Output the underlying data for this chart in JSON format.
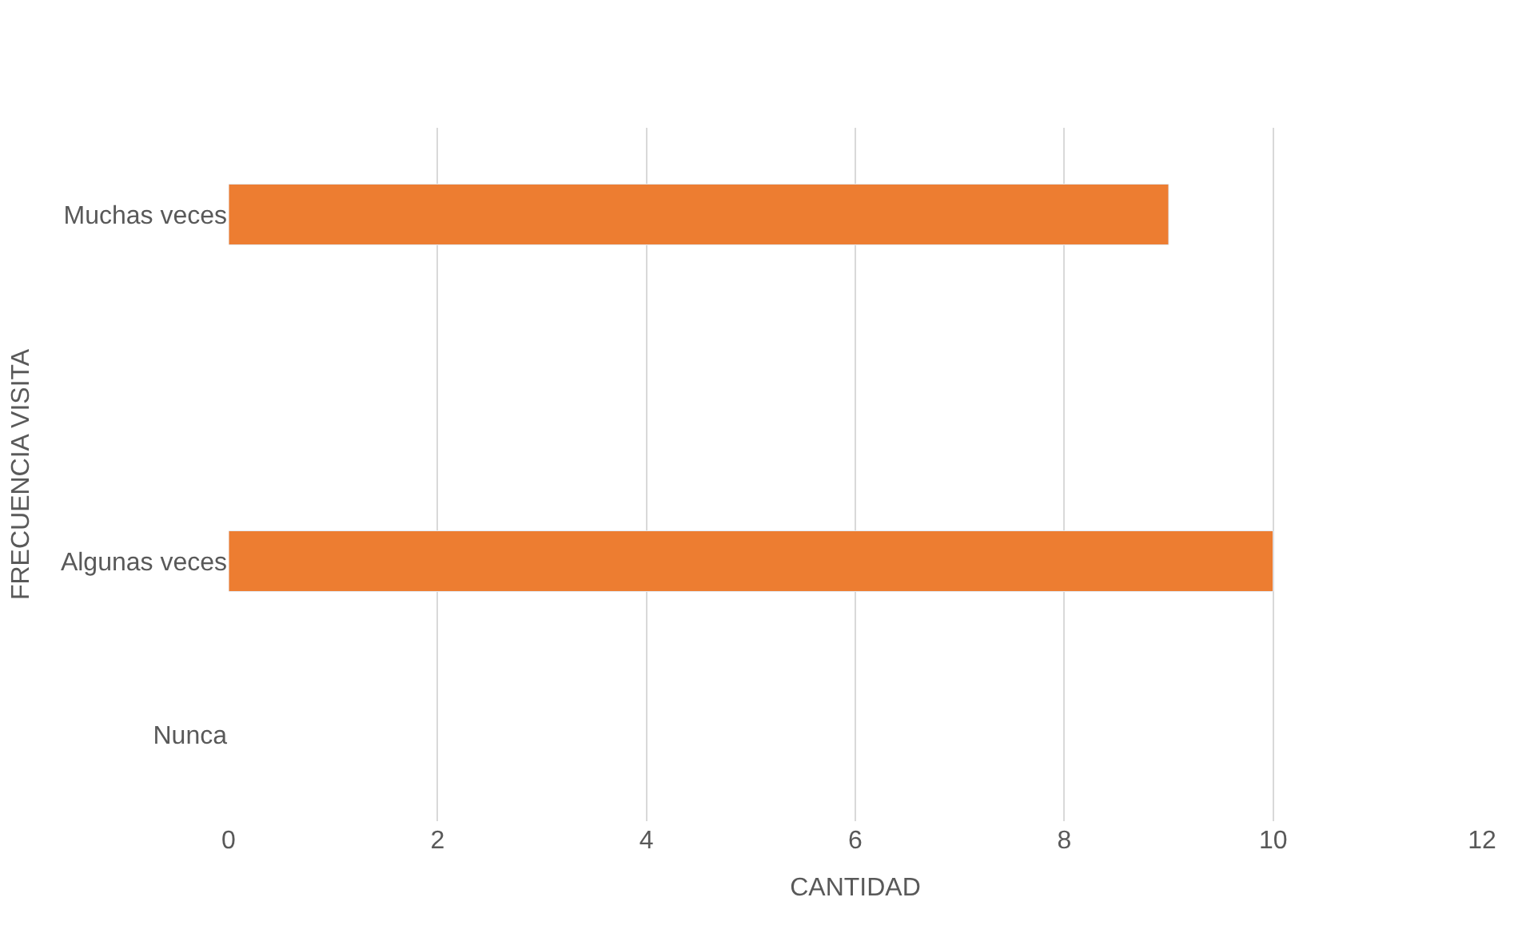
{
  "chart_data": {
    "type": "bar",
    "orientation": "horizontal",
    "categories": [
      "Muchas veces",
      null,
      "Algunas veces",
      "Nunca"
    ],
    "values": [
      9,
      null,
      10,
      null
    ],
    "color": "#ed7d31",
    "xlabel": "CANTIDAD",
    "ylabel": "FRECUENCIA VISITA",
    "xlim": [
      0,
      12
    ],
    "xticks": [
      0,
      2,
      4,
      6,
      8,
      10,
      12
    ],
    "grid": "x",
    "legend": false
  }
}
